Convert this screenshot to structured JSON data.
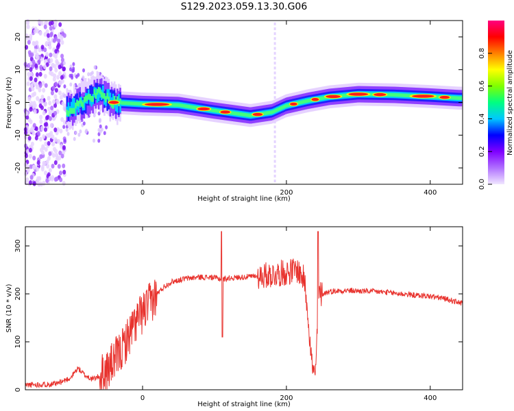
{
  "title": "S129.2023.059.13.30.G06",
  "chart_data": [
    {
      "type": "heatmap",
      "xlabel": "Height of straight line (km)",
      "ylabel": "Frequency (Hz)",
      "xlim": [
        -163,
        445
      ],
      "ylim": [
        -25,
        25
      ],
      "xticks": [
        0,
        200,
        400
      ],
      "yticks": [
        -20,
        -10,
        0,
        10,
        20
      ],
      "colorbar": {
        "label": "Normalized spectral amplitude",
        "range": [
          0,
          1
        ],
        "ticks": [
          0.0,
          0.2,
          0.4,
          0.6,
          0.8
        ],
        "colors": [
          "#f0e6ff",
          "#b070ff",
          "#7f00ff",
          "#0000ff",
          "#00c8ff",
          "#00ff80",
          "#80ff00",
          "#ffff00",
          "#ff8000",
          "#ff0000",
          "#ff0080"
        ]
      },
      "ridge": {
        "x": [
          -100,
          -80,
          -60,
          -40,
          0,
          50,
          100,
          150,
          180,
          200,
          230,
          260,
          300,
          350,
          400,
          440
        ],
        "freq": [
          -2,
          0.5,
          3,
          0,
          -0.5,
          -0.8,
          -2.5,
          -4,
          -3,
          -1,
          0.5,
          1.7,
          2.5,
          2.3,
          1.8,
          1.3
        ]
      },
      "grid": false
    },
    {
      "type": "line",
      "xlabel": "Height of straight line (km)",
      "ylabel": "SNR (10 * v/v)",
      "xlim": [
        -163,
        445
      ],
      "ylim": [
        0,
        340
      ],
      "xticks": [
        0,
        200,
        400
      ],
      "yticks": [
        0,
        100,
        200,
        300
      ],
      "color": "#e8322d",
      "series": [
        {
          "x": [
            -163,
            -120,
            -100,
            -90,
            -80,
            -70,
            -60,
            -50,
            -40,
            -30,
            -20,
            -10,
            0,
            10,
            20,
            30,
            40,
            60,
            80,
            100,
            110,
            120,
            140,
            160,
            180,
            200,
            215,
            225,
            230,
            235,
            240,
            245,
            250,
            260,
            280,
            300,
            320,
            340,
            360,
            380,
            400,
            420,
            445
          ],
          "y": [
            10,
            12,
            25,
            45,
            30,
            22,
            28,
            40,
            60,
            80,
            110,
            140,
            160,
            180,
            200,
            215,
            225,
            232,
            235,
            234,
            230,
            233,
            235,
            237,
            240,
            245,
            250,
            230,
            160,
            60,
            20,
            200,
            200,
            205,
            207,
            206,
            205,
            203,
            200,
            197,
            195,
            190,
            180
          ]
        }
      ],
      "grid": false
    }
  ]
}
